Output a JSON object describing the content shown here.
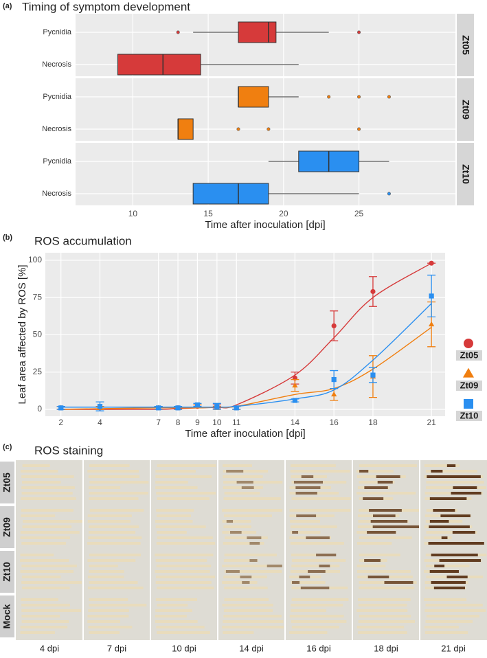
{
  "chart_data": [
    {
      "type": "boxplot",
      "label": "(a)",
      "title": "Timing of symptom development",
      "x_label": "Time after inoculation [dpi]",
      "xlim": [
        6.2,
        31.4
      ],
      "xticks": [
        10,
        15,
        20,
        25
      ],
      "categories": [
        "Pycnidia",
        "Necrosis"
      ],
      "series": [
        {
          "name": "Zt05",
          "color": "#d63a3a",
          "boxes": [
            {
              "min": 14,
              "q1": 17,
              "median": 19,
              "q3": 19.5,
              "max": 23,
              "outliers": [
                13,
                25
              ]
            },
            {
              "min": 9,
              "q1": 9,
              "median": 12,
              "q3": 14.5,
              "max": 21,
              "outliers": []
            }
          ]
        },
        {
          "name": "Zt09",
          "color": "#f07f10",
          "boxes": [
            {
              "min": 17,
              "q1": 17,
              "median": 17,
              "q3": 19,
              "max": 21,
              "outliers": [
                23,
                25,
                27
              ]
            },
            {
              "min": 13,
              "q1": 13,
              "median": 13,
              "q3": 14,
              "max": 14,
              "outliers": [
                17,
                19,
                25
              ]
            }
          ]
        },
        {
          "name": "Zt10",
          "color": "#2a8ff0",
          "boxes": [
            {
              "min": 19,
              "q1": 21,
              "median": 23,
              "q3": 25,
              "max": 27,
              "outliers": []
            },
            {
              "min": 14,
              "q1": 14,
              "median": 17,
              "q3": 19,
              "max": 25,
              "outliers": [
                27
              ]
            }
          ]
        }
      ]
    },
    {
      "type": "line",
      "label": "(b)",
      "title": "ROS accumulation",
      "x_label": "Time after inoculation [dpi]",
      "y_label": "Leaf area affected by ROS [%]",
      "x": [
        2,
        4,
        7,
        8,
        9,
        10,
        11,
        14,
        16,
        18,
        21
      ],
      "xlim": [
        1.2,
        21.7
      ],
      "xticks": [
        2,
        4,
        7,
        8,
        9,
        10,
        11,
        14,
        16,
        18,
        21
      ],
      "ylim": [
        -4.6,
        105
      ],
      "yticks": [
        0,
        25,
        50,
        75,
        100
      ],
      "series": [
        {
          "name": "Zt05",
          "color": "#d63a3a",
          "shape": "circle",
          "values": [
            1,
            1,
            1,
            1,
            2,
            2,
            1,
            21,
            56,
            79,
            98
          ],
          "errors": [
            1,
            1,
            1,
            1,
            1,
            1,
            1,
            4,
            10,
            10,
            0
          ],
          "fit": [
            0,
            0,
            0,
            0.5,
            1,
            1.5,
            3,
            23,
            48,
            75,
            98
          ]
        },
        {
          "name": "Zt09",
          "color": "#f07f10",
          "shape": "triangle",
          "values": [
            1,
            1,
            1,
            1,
            2,
            1,
            1,
            16,
            10,
            22,
            57
          ],
          "errors": [
            1,
            1,
            1,
            1,
            1,
            1,
            1,
            4,
            4,
            14,
            15
          ],
          "fit": [
            0,
            0.5,
            1,
            1,
            1,
            1.5,
            2,
            10,
            14,
            27,
            55
          ]
        },
        {
          "name": "Zt10",
          "color": "#2a8ff0",
          "shape": "square",
          "values": [
            1,
            2,
            1,
            1,
            3,
            2,
            1,
            6,
            20,
            23,
            76
          ],
          "errors": [
            1,
            3,
            1,
            1,
            1,
            2,
            1,
            1,
            6,
            5,
            14
          ],
          "fit": [
            1.5,
            1.5,
            1.5,
            1.5,
            1.5,
            1.5,
            2,
            7,
            13,
            33,
            71
          ]
        }
      ]
    },
    {
      "type": "image",
      "label": "(c)",
      "title": "ROS staining",
      "rows": [
        "Zt05",
        "Zt09",
        "Zt10",
        "Mock"
      ],
      "columns": [
        "4 dpi",
        "7 dpi",
        "10 dpi",
        "14 dpi",
        "16 dpi",
        "18 dpi",
        "21 dpi"
      ]
    }
  ]
}
